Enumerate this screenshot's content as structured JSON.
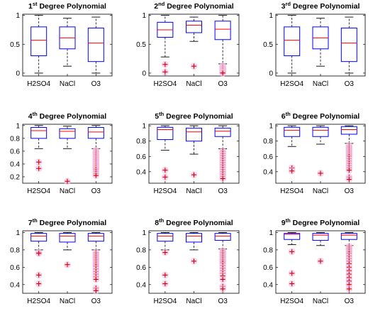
{
  "figure": {
    "layout": "3x3 grid of box plots"
  },
  "style": {
    "box_color": "#0000ff",
    "median_color": "#ff0000",
    "whisker_color": "#000000",
    "outlier_color": "#cc0000",
    "outlier_glow": "#f4c6e8"
  },
  "chart_data": [
    {
      "type": "box",
      "title": {
        "pre": "1",
        "sup": "st",
        "post": " Degree Polynomial"
      },
      "ylim": [
        -0.05,
        1.02
      ],
      "yticks": [
        "0",
        "0.5",
        "1"
      ],
      "ytick_values": [
        0,
        0.5,
        1
      ],
      "categories": [
        "H2SO4",
        "NaCl",
        "O3"
      ],
      "boxes": [
        {
          "name": "H2SO4",
          "whislo": 0.0,
          "q1": 0.3,
          "med": 0.57,
          "q3": 0.8,
          "whishi": 1.0,
          "outliers": []
        },
        {
          "name": "NaCl",
          "whislo": 0.12,
          "q1": 0.42,
          "med": 0.61,
          "q3": 0.8,
          "whishi": 0.95,
          "outliers": []
        },
        {
          "name": "O3",
          "whislo": 0.0,
          "q1": 0.2,
          "med": 0.52,
          "q3": 0.78,
          "whishi": 0.97,
          "outliers": []
        }
      ]
    },
    {
      "type": "box",
      "title": {
        "pre": "2",
        "sup": "nd",
        "post": " Degree Polynomial"
      },
      "ylim": [
        -0.05,
        1.02
      ],
      "yticks": [
        "0",
        "0.5",
        "1"
      ],
      "ytick_values": [
        0,
        0.5,
        1
      ],
      "categories": [
        "H2SO4",
        "NaCl",
        "O3"
      ],
      "boxes": [
        {
          "name": "H2SO4",
          "whislo": 0.28,
          "q1": 0.62,
          "med": 0.75,
          "q3": 0.88,
          "whishi": 1.0,
          "outliers": [
            0.15,
            0.02
          ]
        },
        {
          "name": "NaCl",
          "whislo": 0.55,
          "q1": 0.7,
          "med": 0.83,
          "q3": 0.9,
          "whishi": 0.97,
          "outliers": [
            0.12
          ]
        },
        {
          "name": "O3",
          "whislo": 0.16,
          "q1": 0.58,
          "med": 0.76,
          "q3": 0.9,
          "whishi": 1.0,
          "outliers": [
            0.12,
            0.1,
            0.08,
            0.06,
            0.04,
            0.02,
            0.01,
            0.0
          ]
        }
      ]
    },
    {
      "type": "box",
      "title": {
        "pre": "3",
        "sup": "rd",
        "post": " Degree Polynomial"
      },
      "ylim": [
        -0.05,
        1.02
      ],
      "yticks": [
        "0",
        "0.5",
        "1"
      ],
      "ytick_values": [
        0,
        0.5,
        1
      ],
      "categories": [
        "H2SO4",
        "NaCl",
        "O3"
      ],
      "boxes": [
        {
          "name": "H2SO4",
          "whislo": 0.0,
          "q1": 0.3,
          "med": 0.57,
          "q3": 0.8,
          "whishi": 1.0,
          "outliers": []
        },
        {
          "name": "NaCl",
          "whislo": 0.12,
          "q1": 0.42,
          "med": 0.61,
          "q3": 0.8,
          "whishi": 0.95,
          "outliers": []
        },
        {
          "name": "O3",
          "whislo": 0.0,
          "q1": 0.2,
          "med": 0.52,
          "q3": 0.78,
          "whishi": 0.97,
          "outliers": []
        }
      ]
    },
    {
      "type": "box",
      "title": {
        "pre": "4",
        "sup": "th",
        "post": " Degree Polynomial"
      },
      "ylim": [
        0.1,
        1.02
      ],
      "yticks": [
        "0.2",
        "0.4",
        "0.6",
        "0.8",
        "1"
      ],
      "ytick_values": [
        0.2,
        0.4,
        0.6,
        0.8,
        1.0
      ],
      "categories": [
        "H2SO4",
        "NaCl",
        "O3"
      ],
      "boxes": [
        {
          "name": "H2SO4",
          "whislo": 0.64,
          "q1": 0.8,
          "med": 0.92,
          "q3": 0.97,
          "whishi": 1.0,
          "outliers": [
            0.43,
            0.33
          ]
        },
        {
          "name": "NaCl",
          "whislo": 0.64,
          "q1": 0.8,
          "med": 0.91,
          "q3": 0.95,
          "whishi": 0.99,
          "outliers": [
            0.13
          ]
        },
        {
          "name": "O3",
          "whislo": 0.64,
          "q1": 0.8,
          "med": 0.9,
          "q3": 0.97,
          "whishi": 1.0,
          "outliers": [
            0.61,
            0.59,
            0.57,
            0.55,
            0.53,
            0.51,
            0.49,
            0.47,
            0.45,
            0.43,
            0.41,
            0.39,
            0.37,
            0.35,
            0.33,
            0.31,
            0.28,
            0.25,
            0.22
          ]
        }
      ]
    },
    {
      "type": "box",
      "title": {
        "pre": "5",
        "sup": "th",
        "post": " Degree Polynomial"
      },
      "ylim": [
        0.25,
        1.02
      ],
      "yticks": [
        "0.4",
        "0.6",
        "0.8",
        "1"
      ],
      "ytick_values": [
        0.4,
        0.6,
        0.8,
        1.0
      ],
      "categories": [
        "H2SO4",
        "NaCl",
        "O3"
      ],
      "boxes": [
        {
          "name": "H2SO4",
          "whislo": 0.68,
          "q1": 0.82,
          "med": 0.95,
          "q3": 0.98,
          "whishi": 1.0,
          "outliers": [
            0.42,
            0.33
          ]
        },
        {
          "name": "NaCl",
          "whislo": 0.63,
          "q1": 0.8,
          "med": 0.92,
          "q3": 0.97,
          "whishi": 1.0,
          "outliers": [
            0.36
          ]
        },
        {
          "name": "O3",
          "whislo": 0.7,
          "q1": 0.86,
          "med": 0.93,
          "q3": 0.97,
          "whishi": 1.0,
          "outliers": [
            0.67,
            0.64,
            0.61,
            0.58,
            0.55,
            0.52,
            0.49,
            0.46,
            0.43,
            0.4,
            0.37,
            0.34,
            0.31
          ]
        }
      ]
    },
    {
      "type": "box",
      "title": {
        "pre": "6",
        "sup": "th",
        "post": " Degree Polynomial"
      },
      "ylim": [
        0.25,
        1.02
      ],
      "yticks": [
        "0.4",
        "0.6",
        "0.8",
        "1"
      ],
      "ytick_values": [
        0.4,
        0.6,
        0.8,
        1.0
      ],
      "categories": [
        "H2SO4",
        "NaCl",
        "O3"
      ],
      "boxes": [
        {
          "name": "H2SO4",
          "whislo": 0.73,
          "q1": 0.86,
          "med": 0.94,
          "q3": 0.98,
          "whishi": 1.0,
          "outliers": [
            0.45,
            0.41
          ]
        },
        {
          "name": "NaCl",
          "whislo": 0.76,
          "q1": 0.86,
          "med": 0.94,
          "q3": 0.98,
          "whishi": 1.0,
          "outliers": [
            0.38
          ]
        },
        {
          "name": "O3",
          "whislo": 0.77,
          "q1": 0.89,
          "med": 0.95,
          "q3": 0.99,
          "whishi": 1.0,
          "outliers": [
            0.74,
            0.72,
            0.7,
            0.68,
            0.66,
            0.64,
            0.62,
            0.6,
            0.57,
            0.54,
            0.51,
            0.48,
            0.45,
            0.42,
            0.33,
            0.3
          ]
        }
      ]
    },
    {
      "type": "box",
      "title": {
        "pre": "7",
        "sup": "th",
        "post": " Degree Polynomial"
      },
      "ylim": [
        0.3,
        1.02
      ],
      "yticks": [
        "0.4",
        "0.6",
        "0.8",
        "1"
      ],
      "ytick_values": [
        0.4,
        0.6,
        0.8,
        1.0
      ],
      "categories": [
        "H2SO4",
        "NaCl",
        "O3"
      ],
      "boxes": [
        {
          "name": "H2SO4",
          "whislo": 0.8,
          "q1": 0.9,
          "med": 0.96,
          "q3": 0.99,
          "whishi": 1.0,
          "outliers": [
            0.77,
            0.76,
            0.51,
            0.41
          ]
        },
        {
          "name": "NaCl",
          "whislo": 0.8,
          "q1": 0.89,
          "med": 0.96,
          "q3": 0.99,
          "whishi": 1.0,
          "outliers": [
            0.63
          ]
        },
        {
          "name": "O3",
          "whislo": 0.8,
          "q1": 0.9,
          "med": 0.96,
          "q3": 0.99,
          "whishi": 1.0,
          "outliers": [
            0.77,
            0.75,
            0.73,
            0.71,
            0.69,
            0.67,
            0.65,
            0.63,
            0.61,
            0.58,
            0.55,
            0.52,
            0.49,
            0.46,
            0.36,
            0.33
          ]
        }
      ]
    },
    {
      "type": "box",
      "title": {
        "pre": "8",
        "sup": "th",
        "post": " Degree Polynomial"
      },
      "ylim": [
        0.3,
        1.02
      ],
      "yticks": [
        "0.4",
        "0.6",
        "0.8",
        "1"
      ],
      "ytick_values": [
        0.4,
        0.6,
        0.8,
        1.0
      ],
      "categories": [
        "H2SO4",
        "NaCl",
        "O3"
      ],
      "boxes": [
        {
          "name": "H2SO4",
          "whislo": 0.8,
          "q1": 0.9,
          "med": 0.96,
          "q3": 0.99,
          "whishi": 1.0,
          "outliers": [
            0.77,
            0.51,
            0.41
          ]
        },
        {
          "name": "NaCl",
          "whislo": 0.8,
          "q1": 0.89,
          "med": 0.96,
          "q3": 0.99,
          "whishi": 1.0,
          "outliers": [
            0.67
          ]
        },
        {
          "name": "O3",
          "whislo": 0.81,
          "q1": 0.91,
          "med": 0.96,
          "q3": 0.99,
          "whishi": 1.0,
          "outliers": [
            0.79,
            0.77,
            0.75,
            0.73,
            0.71,
            0.69,
            0.67,
            0.65,
            0.62,
            0.59,
            0.56,
            0.53,
            0.5,
            0.46,
            0.38,
            0.35
          ]
        }
      ]
    },
    {
      "type": "box",
      "title": {
        "pre": "9",
        "sup": "th",
        "post": " Degree Polynomial"
      },
      "ylim": [
        0.3,
        1.02
      ],
      "yticks": [
        "0.4",
        "0.6",
        "0.8",
        "1"
      ],
      "ytick_values": [
        0.4,
        0.6,
        0.8,
        1.0
      ],
      "categories": [
        "H2SO4",
        "NaCl",
        "O3"
      ],
      "boxes": [
        {
          "name": "H2SO4",
          "whislo": 0.86,
          "q1": 0.92,
          "med": 0.98,
          "q3": 0.99,
          "whishi": 1.0,
          "outliers": [
            0.78,
            0.53,
            0.41
          ]
        },
        {
          "name": "NaCl",
          "whislo": 0.85,
          "q1": 0.91,
          "med": 0.97,
          "q3": 0.99,
          "whishi": 1.0,
          "outliers": [
            0.67
          ]
        },
        {
          "name": "O3",
          "whislo": 0.85,
          "q1": 0.92,
          "med": 0.97,
          "q3": 0.99,
          "whishi": 1.0,
          "outliers": [
            0.84,
            0.82,
            0.8,
            0.78,
            0.76,
            0.73,
            0.7,
            0.67,
            0.64,
            0.6,
            0.56,
            0.52,
            0.48,
            0.44,
            0.4,
            0.35
          ]
        }
      ]
    }
  ]
}
